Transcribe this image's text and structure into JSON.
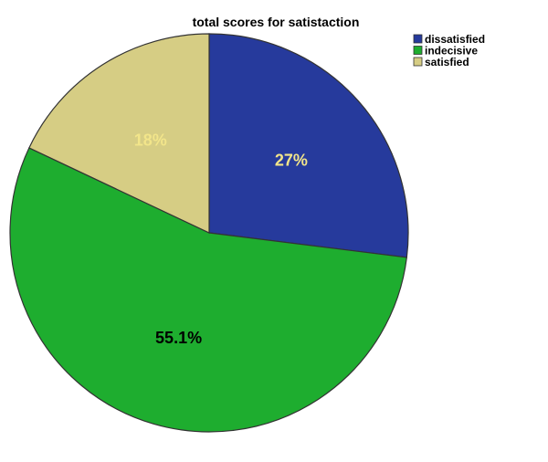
{
  "chart_data": {
    "type": "pie",
    "title": "total scores for satistaction",
    "categories": [
      "dissatisfied",
      "indecisive",
      "satisfied"
    ],
    "values": [
      27,
      55.1,
      18
    ],
    "labels": [
      "27%",
      "55.1%",
      "18%"
    ],
    "colors": [
      "#263a9c",
      "#1ead2f",
      "#d6cd84"
    ],
    "label_colors": [
      "#f2e58a",
      "#000000",
      "#f2e58a"
    ],
    "start_angle_deg": 0,
    "direction": "clockwise",
    "legend": {
      "placement": "top-right"
    }
  }
}
